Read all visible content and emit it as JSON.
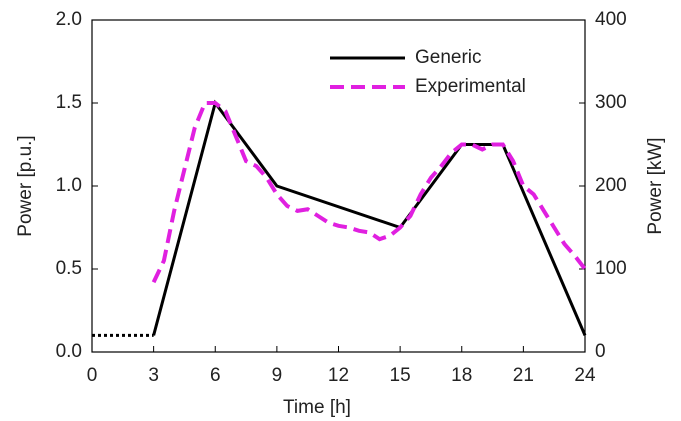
{
  "chart_data": {
    "type": "line",
    "x_label": "Time [h]",
    "y_label": "Power [p.u.]",
    "y2_label": "Power [kW]",
    "xlim": [
      0,
      24
    ],
    "xticks": [
      0,
      3,
      6,
      9,
      12,
      15,
      18,
      21,
      24
    ],
    "ylim": [
      0,
      2
    ],
    "yticks": [
      {
        "value": 0,
        "label": "0.0"
      },
      {
        "value": 0.5,
        "label": "0.5"
      },
      {
        "value": 1,
        "label": "1.0"
      },
      {
        "value": 1.5,
        "label": "1.5"
      },
      {
        "value": 2,
        "label": "2.0"
      }
    ],
    "y2lim": [
      0,
      400
    ],
    "y2ticks": [
      0,
      100,
      200,
      300,
      400
    ],
    "legend": "upper right",
    "series": [
      {
        "name": "Generic",
        "color": "#000000",
        "dash": "solid",
        "x": [
          3,
          6,
          9,
          15,
          18,
          20,
          24
        ],
        "values": [
          0.1,
          1.5,
          1.0,
          0.75,
          1.25,
          1.25,
          0.1
        ]
      },
      {
        "color": "#000000",
        "dash": "dotted",
        "x": [
          0,
          3
        ],
        "values": [
          0.1,
          0.1
        ]
      },
      {
        "name": "Experimental",
        "color": "#e020e0",
        "dash": "dashed",
        "x": [
          3,
          3.5,
          4,
          4.5,
          5,
          5.5,
          6,
          6.5,
          7,
          7.5,
          8,
          8.5,
          9,
          9.5,
          10,
          10.5,
          11,
          11.5,
          12,
          12.5,
          13,
          13.5,
          14,
          14.5,
          15,
          15.5,
          16,
          16.5,
          17,
          17.5,
          18,
          18.5,
          19,
          19.5,
          20,
          20.5,
          21,
          21.5,
          22,
          22.5,
          23,
          23.5,
          24
        ],
        "values": [
          0.42,
          0.55,
          0.85,
          1.1,
          1.35,
          1.5,
          1.5,
          1.45,
          1.3,
          1.15,
          1.12,
          1.05,
          0.95,
          0.88,
          0.85,
          0.86,
          0.82,
          0.78,
          0.76,
          0.75,
          0.73,
          0.72,
          0.68,
          0.7,
          0.75,
          0.82,
          0.95,
          1.05,
          1.12,
          1.2,
          1.25,
          1.25,
          1.22,
          1.25,
          1.25,
          1.15,
          1.0,
          0.95,
          0.85,
          0.75,
          0.65,
          0.58,
          0.5
        ]
      }
    ]
  }
}
